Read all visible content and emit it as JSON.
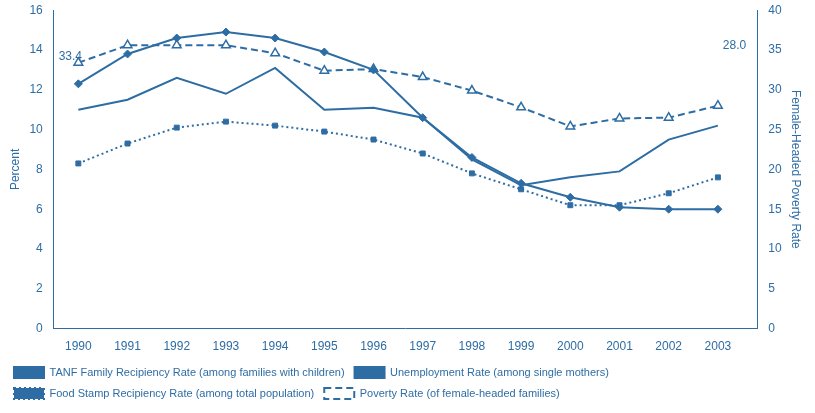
{
  "chart_data": {
    "type": "line",
    "color": "#2E6DA4",
    "x": [
      1990,
      1991,
      1992,
      1993,
      1994,
      1995,
      1996,
      1997,
      1998,
      1999,
      2000,
      2001,
      2002,
      2003
    ],
    "xlim": [
      1989.5,
      2003.8
    ],
    "xticks": [
      1990,
      1991,
      1992,
      1993,
      1994,
      1995,
      1996,
      1997,
      1998,
      1999,
      2000,
      2001,
      2002,
      2003
    ],
    "ylabel": "Percent",
    "ylim": [
      0,
      16
    ],
    "yticks": [
      0,
      2,
      4,
      6,
      8,
      10,
      12,
      14,
      16
    ],
    "y2label": "Female-Headed Poverty Rate",
    "y2lim": [
      0,
      40
    ],
    "y2ticks": [
      0,
      5,
      10,
      15,
      20,
      25,
      30,
      35,
      40
    ],
    "grid": false,
    "legend": "lower left",
    "series": [
      {
        "name": "TANF Family Recipiency Rate (among families with children)",
        "values": [
          12.3,
          13.8,
          14.6,
          14.9,
          14.6,
          13.9,
          13.0,
          10.6,
          8.6,
          7.3,
          6.6,
          6.1,
          6.0,
          6.0
        ],
        "marker": "diamond",
        "line_style": "solid"
      },
      {
        "name": "Unemployment Rate (among single mothers)",
        "values": [
          11.0,
          11.5,
          12.6,
          11.8,
          13.1,
          11.0,
          11.1,
          10.6,
          8.5,
          7.2,
          7.6,
          7.9,
          9.5,
          10.2
        ],
        "marker": "none",
        "line_style": "solid"
      },
      {
        "name": "Food Stamp Recipiency Rate (among total population)",
        "values": [
          8.3,
          9.3,
          10.1,
          10.4,
          10.2,
          9.9,
          9.5,
          8.8,
          7.8,
          7.0,
          6.2,
          6.2,
          6.8,
          7.6
        ],
        "marker": "square",
        "line_style": "dotted"
      },
      {
        "name": "Poverty Rate (of female-headed families)",
        "values": [
          33.4,
          35.6,
          35.6,
          35.6,
          34.6,
          32.4,
          32.6,
          31.6,
          29.9,
          27.8,
          25.4,
          26.4,
          26.5,
          28.0
        ],
        "marker": "open_triangle",
        "line_style": "dashed",
        "axis": "y2"
      }
    ],
    "annotations": [
      {
        "text": "33.4",
        "x": 1989.6,
        "y": 13.36
      },
      {
        "text": "28.0",
        "x": 2003.1,
        "y": 13.9
      }
    ]
  }
}
